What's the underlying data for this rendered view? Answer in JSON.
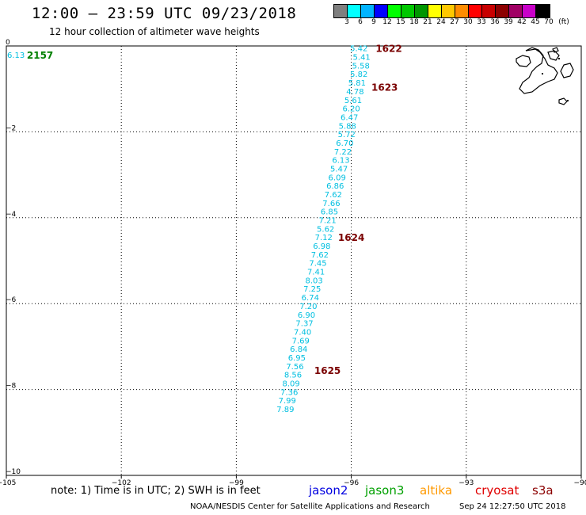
{
  "header": {
    "title": "12:00 – 23:59 UTC 09/23/2018",
    "subtitle": "12 hour collection of altimeter wave heights"
  },
  "colorbar": {
    "colors": [
      "#7f7f7f",
      "#00ffff",
      "#00b4ff",
      "#0000ff",
      "#00ff00",
      "#00c800",
      "#009600",
      "#ffff00",
      "#ffc800",
      "#ff8c00",
      "#ff0000",
      "#c80000",
      "#8c0000",
      "#a00064",
      "#c800c8",
      "#000000"
    ],
    "labels": [
      "3",
      "6",
      "9",
      "12",
      "15",
      "18",
      "21",
      "24",
      "27",
      "30",
      "33",
      "36",
      "39",
      "42",
      "45",
      "70",
      "(ft)"
    ]
  },
  "map": {
    "lon_range": [
      -105,
      -90
    ],
    "lat_range": [
      -10,
      0
    ],
    "lon_ticks": [
      -105,
      -102,
      -99,
      -96,
      -93,
      -90
    ],
    "lat_ticks": [
      0,
      -2,
      -4,
      -6,
      -8,
      -10
    ],
    "lon_labels": [
      "−105",
      "−102",
      "−99",
      "−96",
      "−93",
      "−90"
    ],
    "lat_labels": [
      "0",
      "−2",
      "−4",
      "−6",
      "−8",
      "−10"
    ],
    "grid": "dotted",
    "land_color": "#000000",
    "swh_color": "#00bfe0",
    "jason3_time_color": "#008000",
    "s3a_time_color": "#7a0000"
  },
  "observations": [
    {
      "lon": -95.8,
      "lat": -0.05,
      "swh": "5.42"
    },
    {
      "lon": -95.73,
      "lat": -0.25,
      "swh": "5.41"
    },
    {
      "lon": -95.75,
      "lat": -0.45,
      "swh": "5.58"
    },
    {
      "lon": -95.8,
      "lat": -0.65,
      "swh": "5.82"
    },
    {
      "lon": -95.85,
      "lat": -0.85,
      "swh": "5.81"
    },
    {
      "lon": -95.9,
      "lat": -1.05,
      "swh": "4.78"
    },
    {
      "lon": -95.95,
      "lat": -1.25,
      "swh": "5.61"
    },
    {
      "lon": -96.0,
      "lat": -1.45,
      "swh": "6.20"
    },
    {
      "lon": -96.05,
      "lat": -1.65,
      "swh": "6.47"
    },
    {
      "lon": -96.1,
      "lat": -1.85,
      "swh": "5.88"
    },
    {
      "lon": -96.12,
      "lat": -2.05,
      "swh": "5.72"
    },
    {
      "lon": -96.17,
      "lat": -2.25,
      "swh": "6.70"
    },
    {
      "lon": -96.22,
      "lat": -2.45,
      "swh": "7.22"
    },
    {
      "lon": -96.27,
      "lat": -2.65,
      "swh": "6.13"
    },
    {
      "lon": -96.32,
      "lat": -2.85,
      "swh": "5.47"
    },
    {
      "lon": -96.37,
      "lat": -3.05,
      "swh": "6.09"
    },
    {
      "lon": -96.42,
      "lat": -3.25,
      "swh": "6.86"
    },
    {
      "lon": -96.47,
      "lat": -3.45,
      "swh": "7.62"
    },
    {
      "lon": -96.52,
      "lat": -3.65,
      "swh": "7.66"
    },
    {
      "lon": -96.57,
      "lat": -3.85,
      "swh": "6.85"
    },
    {
      "lon": -96.62,
      "lat": -4.05,
      "swh": "7.21"
    },
    {
      "lon": -96.67,
      "lat": -4.25,
      "swh": "5.62"
    },
    {
      "lon": -96.72,
      "lat": -4.45,
      "swh": "7.12"
    },
    {
      "lon": -96.77,
      "lat": -4.65,
      "swh": "6.98"
    },
    {
      "lon": -96.82,
      "lat": -4.85,
      "swh": "7.62"
    },
    {
      "lon": -96.87,
      "lat": -5.05,
      "swh": "7.45"
    },
    {
      "lon": -96.92,
      "lat": -5.25,
      "swh": "7.41"
    },
    {
      "lon": -96.97,
      "lat": -5.45,
      "swh": "8.03"
    },
    {
      "lon": -97.02,
      "lat": -5.65,
      "swh": "7.25"
    },
    {
      "lon": -97.07,
      "lat": -5.85,
      "swh": "6.74"
    },
    {
      "lon": -97.12,
      "lat": -6.05,
      "swh": "7.20"
    },
    {
      "lon": -97.17,
      "lat": -6.25,
      "swh": "6.90"
    },
    {
      "lon": -97.22,
      "lat": -6.45,
      "swh": "7.37"
    },
    {
      "lon": -97.27,
      "lat": -6.65,
      "swh": "7.40"
    },
    {
      "lon": -97.32,
      "lat": -6.85,
      "swh": "7.69"
    },
    {
      "lon": -97.37,
      "lat": -7.05,
      "swh": "6.84"
    },
    {
      "lon": -97.42,
      "lat": -7.25,
      "swh": "6.95"
    },
    {
      "lon": -97.47,
      "lat": -7.45,
      "swh": "7.56"
    },
    {
      "lon": -97.52,
      "lat": -7.65,
      "swh": "8.56"
    },
    {
      "lon": -97.57,
      "lat": -7.85,
      "swh": "8.09"
    },
    {
      "lon": -97.62,
      "lat": -8.05,
      "swh": "7.36"
    },
    {
      "lon": -97.67,
      "lat": -8.25,
      "swh": "7.99"
    },
    {
      "lon": -97.72,
      "lat": -8.45,
      "swh": "7.89"
    }
  ],
  "extra_observations": [
    {
      "lon": -104.75,
      "lat": -0.2,
      "swh": "6.13"
    }
  ],
  "time_labels": [
    {
      "lon": -95.02,
      "lat": -0.05,
      "text": "1622",
      "satellite": "s3a"
    },
    {
      "lon": -95.13,
      "lat": -0.95,
      "text": "1623",
      "satellite": "s3a"
    },
    {
      "lon": -96.0,
      "lat": -4.45,
      "text": "1624",
      "satellite": "s3a"
    },
    {
      "lon": -96.62,
      "lat": -7.55,
      "text": "1625",
      "satellite": "s3a"
    },
    {
      "lon": -104.12,
      "lat": -0.2,
      "text": "2157",
      "satellite": "jason3"
    }
  ],
  "legend": {
    "note": "note: 1) Time is in UTC; 2) SWH is in feet",
    "satellites": [
      {
        "name": "jason2",
        "color": "#0000e0"
      },
      {
        "name": "jason3",
        "color": "#00a000"
      },
      {
        "name": "altika",
        "color": "#ff9900"
      },
      {
        "name": "cryosat",
        "color": "#e00000"
      },
      {
        "name": "s3a",
        "color": "#8b0000"
      }
    ]
  },
  "footer": {
    "credit": "NOAA/NESDIS Center for Satellite Applications and Research",
    "timestamp": "Sep 24 12:27:50 UTC 2018"
  }
}
